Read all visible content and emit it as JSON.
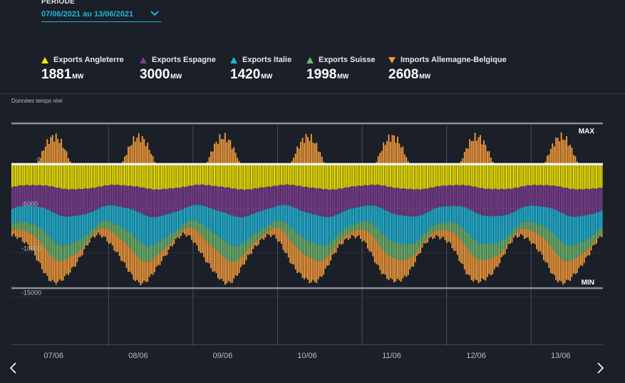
{
  "period": {
    "label": "PÉRIODE",
    "value": "07/06/2021 au 13/06/2021",
    "icon": "chevron-down-icon"
  },
  "legend": [
    {
      "name": "Exports Angleterre",
      "value": "1881",
      "unit": "MW",
      "icon": "triangle-up-icon",
      "color": "#f2e600"
    },
    {
      "name": "Exports Espagne",
      "value": "3000",
      "unit": "MW",
      "icon": "triangle-up-icon",
      "color": "#7a3d8e"
    },
    {
      "name": "Exports Italie",
      "value": "1420",
      "unit": "MW",
      "icon": "triangle-up-icon",
      "color": "#22b5d6"
    },
    {
      "name": "Exports Suisse",
      "value": "1998",
      "unit": "MW",
      "icon": "triangle-up-icon",
      "color": "#6fb86f"
    },
    {
      "name": "Imports Allemagne-Belgique",
      "value": "2608",
      "unit": "MW",
      "icon": "triangle-down-icon",
      "color": "#f39a3a"
    }
  ],
  "realtime_label": "Données temps réel",
  "nav": {
    "prev_icon": "chevron-left-icon",
    "next_icon": "chevron-right-icon"
  },
  "chart_data": {
    "type": "bar",
    "stacked": true,
    "x_tick_labels": [
      "07/06",
      "08/06",
      "09/06",
      "10/06",
      "11/06",
      "12/06",
      "13/06"
    ],
    "y_tick_labels": [
      "0",
      "-5000",
      "-10000",
      "-15000"
    ],
    "y_ticks": [
      0,
      -5000,
      -10000,
      -15000
    ],
    "ylim": [
      -16500,
      5000
    ],
    "max_label": "MAX",
    "min_label": "MIN",
    "max_value": 4600,
    "min_value": -14000,
    "points_per_day": 48,
    "days": 7,
    "series": [
      {
        "name": "Exports Angleterre",
        "color": "#f2e600",
        "base": -2600,
        "amp": 250,
        "phase": 0.0
      },
      {
        "name": "Exports Espagne",
        "color": "#7a3d8e",
        "base": -2700,
        "amp": 400,
        "phase": 0.5
      },
      {
        "name": "Exports Italie",
        "color": "#22b5d6",
        "base": -2500,
        "amp": 800,
        "phase": 1.0
      },
      {
        "name": "Exports Suisse",
        "color": "#6fb86f",
        "base": -1300,
        "amp": 600,
        "phase": 1.5
      },
      {
        "name": "Imports Allemagne-Belgique",
        "color": "#f39a3a",
        "base": -1600,
        "amp": 1200,
        "phase": 2.0,
        "peak": 3600
      }
    ],
    "grid": true,
    "legend_position": "top"
  }
}
